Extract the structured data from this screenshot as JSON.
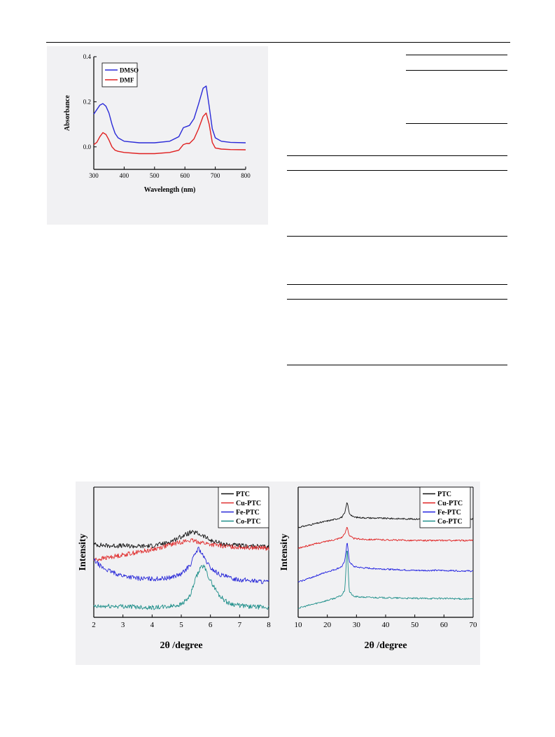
{
  "chart_data": [
    {
      "type": "line",
      "title": "",
      "xlabel": "Wavelength (nm)",
      "ylabel": "Absorbance",
      "xlim": [
        300,
        800
      ],
      "ylim": [
        -0.1,
        0.4
      ],
      "xticks": [
        "300",
        "400",
        "500",
        "600",
        "700",
        "800"
      ],
      "yticks": [
        "0.0",
        "0.2",
        "0.4"
      ],
      "legend_position": "top-left",
      "grid": false,
      "series": [
        {
          "name": "DMSO",
          "color": "#2a2ad8",
          "x": [
            300,
            310,
            320,
            330,
            340,
            350,
            360,
            370,
            380,
            400,
            450,
            500,
            550,
            580,
            595,
            605,
            615,
            630,
            645,
            660,
            670,
            680,
            690,
            700,
            720,
            750,
            800
          ],
          "y": [
            0.145,
            0.165,
            0.185,
            0.192,
            0.18,
            0.15,
            0.1,
            0.06,
            0.04,
            0.025,
            0.018,
            0.018,
            0.025,
            0.045,
            0.085,
            0.09,
            0.095,
            0.125,
            0.19,
            0.26,
            0.27,
            0.18,
            0.08,
            0.04,
            0.025,
            0.02,
            0.018
          ]
        },
        {
          "name": "DMF",
          "color": "#e02020",
          "x": [
            300,
            310,
            320,
            330,
            340,
            350,
            360,
            370,
            380,
            400,
            450,
            500,
            550,
            580,
            595,
            605,
            615,
            630,
            645,
            660,
            670,
            680,
            690,
            700,
            720,
            750,
            800
          ],
          "y": [
            0.01,
            0.02,
            0.045,
            0.063,
            0.055,
            0.03,
            0.0,
            -0.015,
            -0.02,
            -0.025,
            -0.03,
            -0.03,
            -0.025,
            -0.015,
            0.01,
            0.015,
            0.015,
            0.035,
            0.08,
            0.135,
            0.15,
            0.1,
            0.02,
            -0.005,
            -0.01,
            -0.012,
            -0.013
          ]
        }
      ]
    },
    {
      "type": "line",
      "title": "",
      "xlabel": "2θ /degree",
      "ylabel": "Intensity",
      "xlim": [
        2,
        8
      ],
      "ylim": [
        0,
        1
      ],
      "xticks": [
        "2",
        "3",
        "4",
        "5",
        "6",
        "7",
        "8"
      ],
      "legend_position": "top-right",
      "grid": false,
      "series": [
        {
          "name": "PTC",
          "color": "#111111",
          "x": [
            2.0,
            2.5,
            3.0,
            3.5,
            4.0,
            4.5,
            5.0,
            5.3,
            5.5,
            5.8,
            6.0,
            6.5,
            7.0,
            7.5,
            8.0
          ],
          "y": [
            0.56,
            0.55,
            0.55,
            0.545,
            0.55,
            0.57,
            0.62,
            0.65,
            0.65,
            0.62,
            0.59,
            0.56,
            0.55,
            0.545,
            0.54
          ]
        },
        {
          "name": "Cu-PTC",
          "color": "#e03030",
          "x": [
            2.0,
            2.5,
            3.0,
            3.5,
            4.0,
            4.5,
            5.0,
            5.3,
            5.6,
            6.0,
            6.5,
            7.0,
            7.5,
            8.0
          ],
          "y": [
            0.44,
            0.46,
            0.48,
            0.5,
            0.52,
            0.55,
            0.58,
            0.59,
            0.58,
            0.56,
            0.545,
            0.54,
            0.535,
            0.53
          ]
        },
        {
          "name": "Fe-PTC",
          "color": "#2828d8",
          "x": [
            2.0,
            2.3,
            2.7,
            3.0,
            3.5,
            4.0,
            4.5,
            5.0,
            5.3,
            5.5,
            5.6,
            5.8,
            6.0,
            6.3,
            6.7,
            7.0,
            7.5,
            8.0
          ],
          "y": [
            0.44,
            0.38,
            0.34,
            0.32,
            0.3,
            0.295,
            0.3,
            0.33,
            0.4,
            0.5,
            0.53,
            0.45,
            0.38,
            0.33,
            0.3,
            0.29,
            0.28,
            0.27
          ]
        },
        {
          "name": "Co-PTC",
          "color": "#1f8f8a",
          "x": [
            2.0,
            2.5,
            3.0,
            3.5,
            4.0,
            4.5,
            5.0,
            5.3,
            5.5,
            5.7,
            5.8,
            6.0,
            6.3,
            6.6,
            7.0,
            7.5,
            8.0
          ],
          "y": [
            0.08,
            0.085,
            0.085,
            0.08,
            0.075,
            0.08,
            0.1,
            0.16,
            0.3,
            0.4,
            0.38,
            0.28,
            0.17,
            0.11,
            0.09,
            0.08,
            0.075
          ]
        }
      ]
    },
    {
      "type": "line",
      "title": "",
      "xlabel": "2θ /degree",
      "ylabel": "Intensity",
      "xlim": [
        10,
        70
      ],
      "ylim": [
        0,
        1
      ],
      "xticks": [
        "10",
        "20",
        "30",
        "40",
        "50",
        "60",
        "70"
      ],
      "legend_position": "top-right",
      "grid": false,
      "series": [
        {
          "name": "PTC",
          "color": "#111111",
          "x": [
            10,
            15,
            20,
            23,
            25,
            26,
            26.8,
            27.5,
            29,
            32,
            40,
            50,
            60,
            70
          ],
          "y": [
            0.69,
            0.715,
            0.74,
            0.755,
            0.77,
            0.8,
            0.89,
            0.8,
            0.77,
            0.765,
            0.76,
            0.755,
            0.755,
            0.755
          ]
        },
        {
          "name": "Cu-PTC",
          "color": "#e02020",
          "x": [
            10,
            15,
            20,
            23,
            25,
            26,
            26.8,
            27.5,
            29,
            32,
            40,
            50,
            60,
            70
          ],
          "y": [
            0.53,
            0.56,
            0.585,
            0.6,
            0.615,
            0.64,
            0.7,
            0.63,
            0.605,
            0.6,
            0.595,
            0.59,
            0.59,
            0.59
          ]
        },
        {
          "name": "Fe-PTC",
          "color": "#2020e0",
          "x": [
            10,
            15,
            20,
            23,
            25,
            26,
            26.8,
            27.5,
            29,
            32,
            40,
            50,
            60,
            70
          ],
          "y": [
            0.27,
            0.31,
            0.35,
            0.37,
            0.39,
            0.43,
            0.59,
            0.43,
            0.39,
            0.38,
            0.37,
            0.36,
            0.36,
            0.355
          ]
        },
        {
          "name": "Co-PTC",
          "color": "#1f8f8a",
          "x": [
            10,
            15,
            20,
            23,
            25,
            26,
            26.8,
            27.5,
            29,
            32,
            40,
            50,
            60,
            70
          ],
          "y": [
            0.07,
            0.1,
            0.13,
            0.15,
            0.17,
            0.21,
            0.55,
            0.2,
            0.16,
            0.155,
            0.15,
            0.145,
            0.145,
            0.14
          ]
        }
      ]
    }
  ]
}
